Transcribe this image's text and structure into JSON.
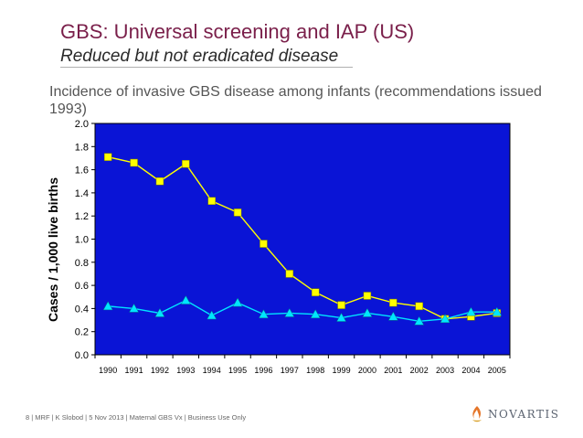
{
  "slide": {
    "title": "GBS: Universal screening and IAP (US)",
    "subtitle": "Reduced but not eradicated disease",
    "description": "Incidence of invasive GBS disease among infants (recommendations issued 1993)",
    "footer": "8   | MRF | K Slobod | 5 Nov 2013 | Maternal GBS Vx | Business Use Only",
    "logo_text": "NOVARTIS"
  },
  "colors": {
    "plot_bg": "#0a14d6",
    "series1": "#ffff00",
    "series2": "#00e5ff",
    "title": "#7a1f4a"
  },
  "chart_data": {
    "type": "line",
    "title": "Incidence of invasive GBS disease among infants (recommendations issued 1993)",
    "xlabel": "",
    "ylabel": "Cases / 1,000 live births",
    "ylim": [
      0,
      2.0
    ],
    "y_ticks": [
      "0.0",
      "0.2",
      "0.4",
      "0.6",
      "0.8",
      "1.0",
      "1.2",
      "1.4",
      "1.6",
      "1.8",
      "2.0"
    ],
    "categories": [
      "1990",
      "1991",
      "1992",
      "1993",
      "1994",
      "1995",
      "1996",
      "1997",
      "1998",
      "1999",
      "2000",
      "2001",
      "2002",
      "2003",
      "2004",
      "2005"
    ],
    "series": [
      {
        "name": "Series 1 (yellow squares)",
        "marker": "square",
        "values": [
          1.71,
          1.66,
          1.5,
          1.65,
          1.33,
          1.23,
          0.96,
          0.7,
          0.54,
          0.43,
          0.51,
          0.45,
          0.42,
          0.31,
          0.33,
          0.36
        ]
      },
      {
        "name": "Series 2 (cyan triangles)",
        "marker": "triangle",
        "values": [
          0.42,
          0.4,
          0.36,
          0.47,
          0.34,
          0.45,
          0.35,
          0.36,
          0.35,
          0.32,
          0.36,
          0.33,
          0.29,
          0.31,
          0.37,
          0.37
        ]
      }
    ],
    "grid": false,
    "legend": "none"
  }
}
